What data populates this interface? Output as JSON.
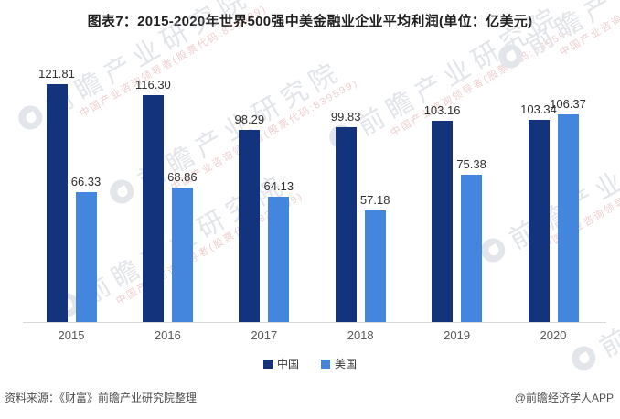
{
  "title": "图表7：2015-2020年世界500强中美金融业企业平均利润(单位：亿美元)",
  "chart_data": {
    "type": "bar",
    "title": "图表7：2015-2020年世界500强中美金融业企业平均利润(单位：亿美元)",
    "unit": "亿美元",
    "categories": [
      "2015",
      "2016",
      "2017",
      "2018",
      "2019",
      "2020"
    ],
    "series": [
      {
        "id": "china",
        "name": "中国",
        "color": "#13337d",
        "values": [
          121.81,
          116.3,
          98.29,
          99.83,
          103.16,
          103.34
        ]
      },
      {
        "id": "usa",
        "name": "美国",
        "color": "#4486dd",
        "values": [
          66.33,
          68.86,
          64.13,
          57.18,
          75.38,
          106.37
        ]
      }
    ],
    "ylim": [
      0,
      130
    ],
    "grid": false,
    "value_labels": true,
    "value_label_decimals": 2,
    "legend_position": "bottom"
  },
  "footer": {
    "source": "资料来源：《财富》前瞻产业研究院整理",
    "credit": "@前瞻经济学人APP"
  },
  "watermark": {
    "text": "前瞻产业研究院",
    "subtext": "中国产业咨询领导者(股票代码:839599)"
  }
}
